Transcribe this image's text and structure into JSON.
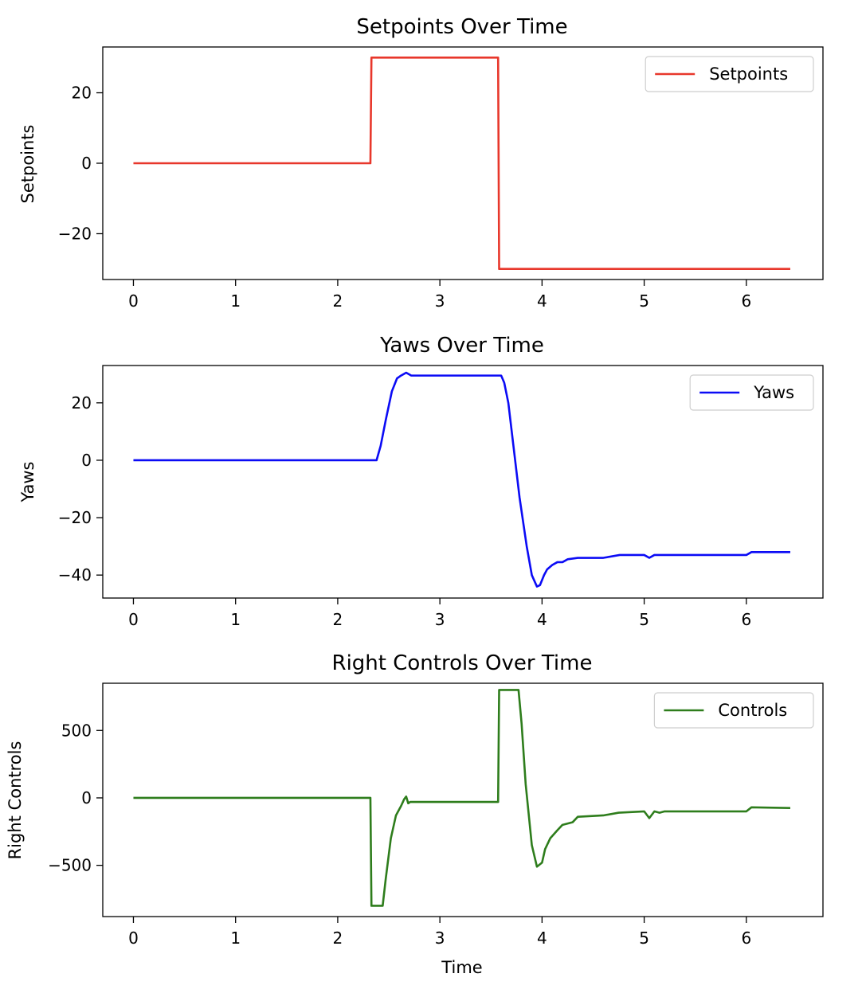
{
  "chart_data": [
    {
      "type": "line",
      "title": "Setpoints Over Time",
      "xlabel": "",
      "ylabel": "Setpoints",
      "xlim": [
        -0.3,
        6.75
      ],
      "ylim": [
        -33,
        33
      ],
      "xticks": [
        0,
        1,
        2,
        3,
        4,
        5,
        6
      ],
      "yticks": [
        -20,
        0,
        20
      ],
      "legend": "upper right",
      "series": [
        {
          "name": "Setpoints",
          "color": "#e8372b",
          "x": [
            0,
            2.32,
            2.33,
            3.57,
            3.58,
            6.43
          ],
          "y": [
            0,
            0,
            30,
            30,
            -30,
            -30
          ]
        }
      ]
    },
    {
      "type": "line",
      "title": "Yaws Over Time",
      "xlabel": "",
      "ylabel": "Yaws",
      "xlim": [
        -0.3,
        6.75
      ],
      "ylim": [
        -48,
        33
      ],
      "xticks": [
        0,
        1,
        2,
        3,
        4,
        5,
        6
      ],
      "yticks": [
        -40,
        -20,
        0,
        20
      ],
      "legend": "upper right",
      "series": [
        {
          "name": "Yaws",
          "color": "#0b0bf5",
          "x": [
            0,
            2.38,
            2.42,
            2.47,
            2.53,
            2.58,
            2.62,
            2.67,
            2.72,
            3.6,
            3.63,
            3.67,
            3.72,
            3.78,
            3.85,
            3.9,
            3.95,
            3.98,
            4.02,
            4.05,
            4.1,
            4.15,
            4.2,
            4.25,
            4.35,
            4.6,
            4.76,
            5.0,
            5.05,
            5.1,
            5.15,
            5.2,
            6.0,
            6.05,
            6.43
          ],
          "y": [
            0,
            0,
            5,
            14,
            24,
            28.5,
            29.5,
            30.5,
            29.5,
            29.5,
            27,
            20,
            5,
            -13,
            -30,
            -40,
            -44,
            -43.5,
            -40,
            -38,
            -36.5,
            -35.5,
            -35.5,
            -34.5,
            -34,
            -34,
            -33,
            -33,
            -34,
            -33,
            -33,
            -33,
            -33,
            -32,
            -32
          ]
        }
      ]
    },
    {
      "type": "line",
      "title": "Right Controls Over Time",
      "xlabel": "Time",
      "ylabel": "Right Controls",
      "xlim": [
        -0.3,
        6.75
      ],
      "ylim": [
        -880,
        850
      ],
      "xticks": [
        0,
        1,
        2,
        3,
        4,
        5,
        6
      ],
      "yticks": [
        -500,
        0,
        500
      ],
      "legend": "upper right",
      "series": [
        {
          "name": "Controls",
          "color": "#2e7d1c",
          "x": [
            0,
            2.32,
            2.33,
            2.44,
            2.47,
            2.52,
            2.57,
            2.62,
            2.65,
            2.67,
            2.69,
            2.71,
            3.57,
            3.58,
            3.77,
            3.8,
            3.84,
            3.9,
            3.95,
            4.0,
            4.03,
            4.08,
            4.15,
            4.2,
            4.3,
            4.35,
            4.6,
            4.75,
            5.0,
            5.05,
            5.1,
            5.15,
            5.2,
            6.0,
            6.05,
            6.43
          ],
          "y": [
            0,
            0,
            -800,
            -800,
            -600,
            -300,
            -130,
            -60,
            -10,
            10,
            -40,
            -30,
            -30,
            800,
            800,
            550,
            100,
            -350,
            -510,
            -480,
            -380,
            -300,
            -240,
            -200,
            -180,
            -140,
            -130,
            -110,
            -100,
            -150,
            -100,
            -110,
            -100,
            -100,
            -70,
            -75
          ]
        }
      ]
    }
  ]
}
